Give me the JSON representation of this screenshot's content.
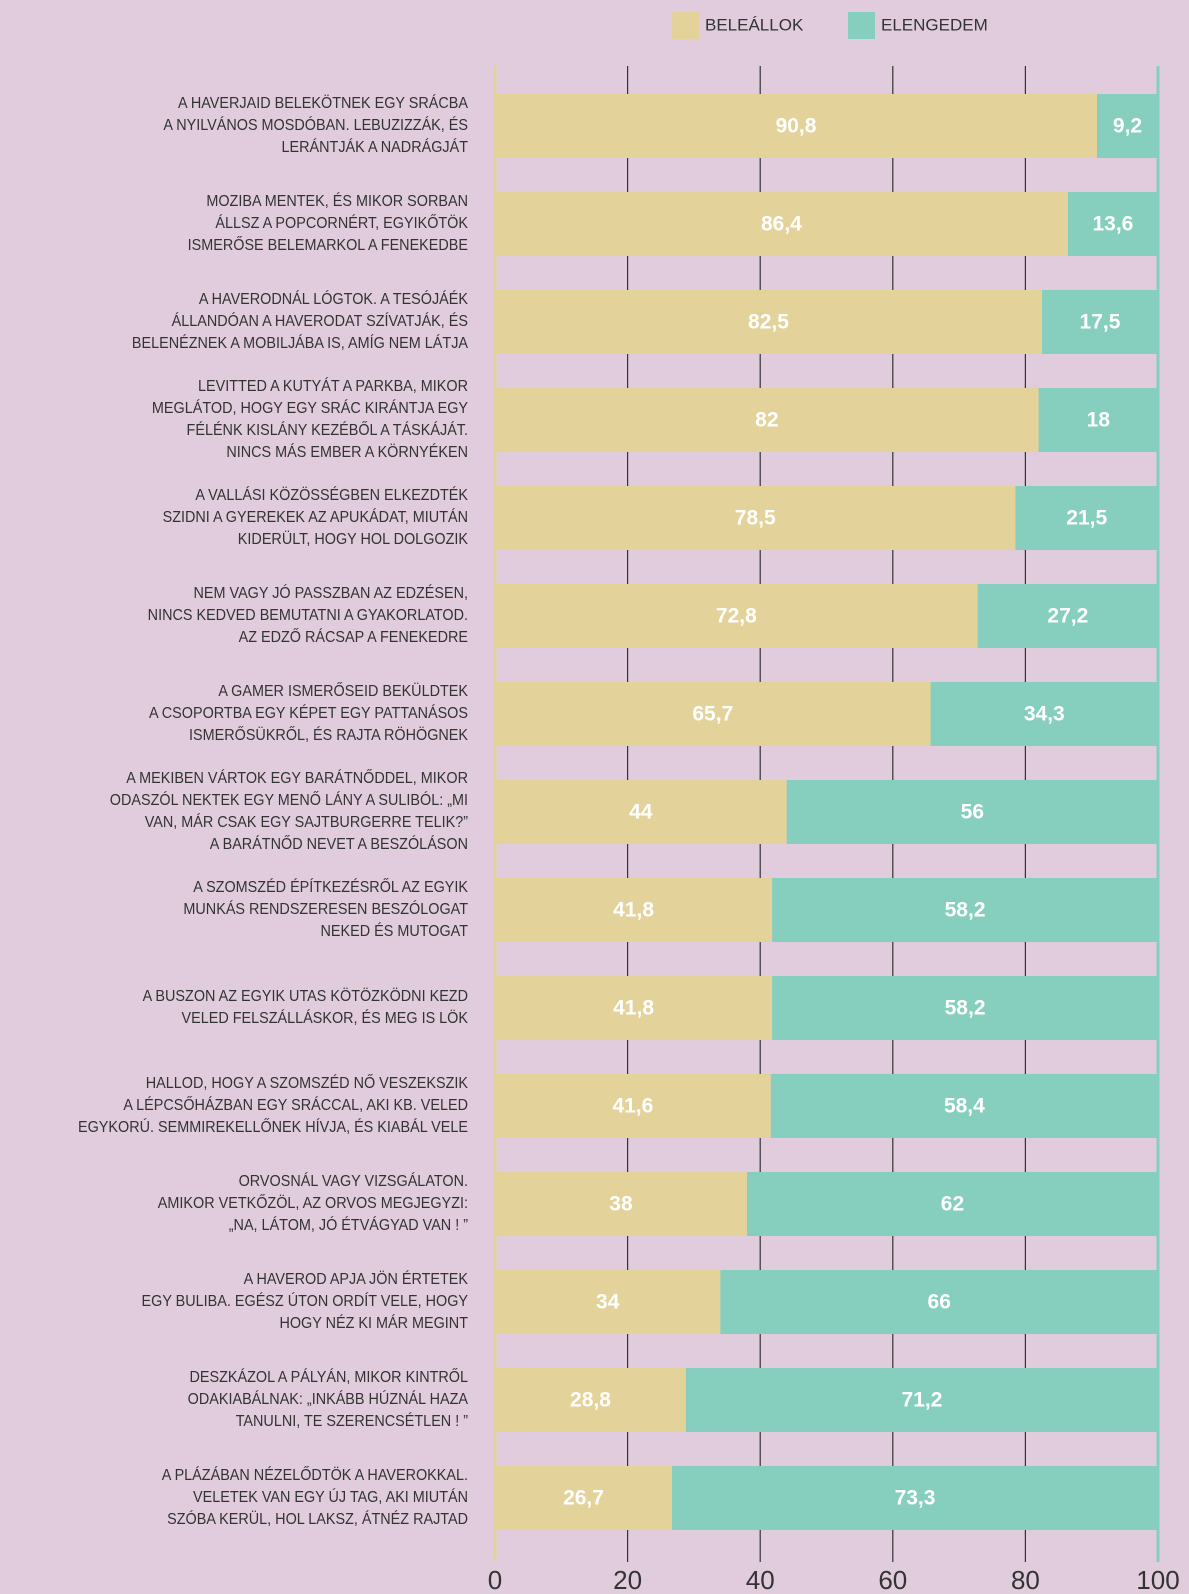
{
  "chart_data": {
    "type": "stacked_barh",
    "categories": [
      "A HAVERJAID BELEKÖTNEK EGY SRÁCBA\nA NYILVÁNOS MOSDÓBAN. LEBUZIZZÁK, ÉS\nLERÁNTJÁK A NADRÁGJÁT",
      "MOZIBA MENTEK, ÉS MIKOR SORBAN\nÁLLSZ A POPCORNÉRT, EGYIKŐTÖK\nISMERŐSE BELEMARKOL A FENEKEDBE",
      "A HAVERODNÁL LÓGTOK. A TESÓJÁÉK\nÁLLANDÓAN A HAVERODAT SZÍVATJÁK, ÉS\nBELENÉZNEK A MOBILJÁBA IS, AMÍG NEM LÁTJA",
      "LEVITTED A KUTYÁT A PARKBA, MIKOR\nMEGLÁTOD, HOGY EGY SRÁC KIRÁNTJA EGY\nFÉLÉNK KISLÁNY KEZÉBŐL A TÁSKÁJÁT.\nNINCS MÁS EMBER A KÖRNYÉKEN",
      "A VALLÁSI KÖZÖSSÉGBEN ELKEZDTÉK\nSZIDNI A GYEREKEK AZ APUKÁDAT, MIUTÁN\nKIDERÜLT, HOGY HOL DOLGOZIK",
      "NEM VAGY JÓ PASSZBAN AZ EDZÉSEN,\nNINCS KEDVED BEMUTATNI A GYAKORLATOD.\nAZ EDZŐ RÁCSAP A FENEKEDRE",
      "A GAMER ISMERŐSEID BEKÜLDTEK\nA CSOPORTBA EGY KÉPET EGY PATTANÁSOS\nISMERŐSÜKRŐL, ÉS RAJTA RÖHÖGNEK",
      "A MEKIBEN VÁRTOK EGY BARÁTNŐDDEL, MIKOR\nODASZÓL NEKTEK EGY MENŐ LÁNY A SULIBÓL: „MI\nVAN, MÁR CSAK EGY SAJTBURGERRE TELIK?”\nA BARÁTNŐD NEVET A BESZÓLÁSON",
      "A SZOMSZÉD ÉPÍTKEZÉSRŐL AZ EGYIK\nMUNKÁS RENDSZERESEN BESZÓLOGAT\nNEKED ÉS MUTOGAT",
      "A BUSZON AZ EGYIK UTAS KÖTÖZKÖDNI KEZD\nVELED FELSZÁLLÁSKOR, ÉS MEG IS LÖK",
      "HALLOD, HOGY A SZOMSZÉD NŐ VESZEKSZIK\nA LÉPCSŐHÁZBAN EGY SRÁCCAL, AKI KB. VELED\nEGYKORÚ. SEMMIREKELLŐNEK HÍVJA, ÉS KIABÁL VELE",
      "ORVOSNÁL VAGY VIZSGÁLATON.\nAMIKOR VETKŐZÖL, AZ ORVOS MEGJEGYZI:\n„NA, LÁTOM, JÓ ÉTVÁGYAD VAN ! ”",
      "A HAVEROD APJA JÖN ÉRTETEK\nEGY BULIBA. EGÉSZ ÚTON ORDÍT VELE, HOGY\nHOGY NÉZ KI MÁR MEGINT",
      "DESZKÁZOL A PÁLYÁN, MIKOR KINTRŐL\nODAKIABÁLNAK: „INKÁBB HÚZNÁL HAZA\nTANULNI, TE SZERENCSÉTLEN ! ”",
      "A PLÁZÁBAN NÉZELŐDTÖK A HAVEROKKAL.\nVELETEK VAN EGY ÚJ TAG, AKI MIUTÁN\nSZÓBA KERÜL, HOL LAKSZ, ÁTNÉZ RAJTAD"
    ],
    "series": [
      {
        "name": "BELEÁLLOK",
        "color": "#e3d39b",
        "values": [
          90.8,
          86.4,
          82.5,
          82,
          78.5,
          72.8,
          65.7,
          44,
          41.8,
          41.8,
          41.6,
          38,
          34,
          28.8,
          26.7
        ],
        "value_labels": [
          "90,8",
          "86,4",
          "82,5",
          "82",
          "78,5",
          "72,8",
          "65,7",
          "44",
          "41,8",
          "41,8",
          "41,6",
          "38",
          "34",
          "28,8",
          "26,7"
        ]
      },
      {
        "name": "ELENGEDEM",
        "color": "#86cfbf",
        "values": [
          9.2,
          13.6,
          17.5,
          18,
          21.5,
          27.2,
          34.3,
          56,
          58.2,
          58.2,
          58.4,
          62,
          66,
          71.2,
          73.3
        ],
        "value_labels": [
          "9,2",
          "13,6",
          "17,5",
          "18",
          "21,5",
          "27,2",
          "34,3",
          "56",
          "58,2",
          "58,2",
          "58,4",
          "62",
          "66",
          "71,2",
          "73,3"
        ]
      }
    ],
    "xlim": [
      0,
      100
    ],
    "xticks": [
      0,
      20,
      40,
      60,
      80,
      100
    ],
    "grid": true,
    "legend": "top"
  }
}
